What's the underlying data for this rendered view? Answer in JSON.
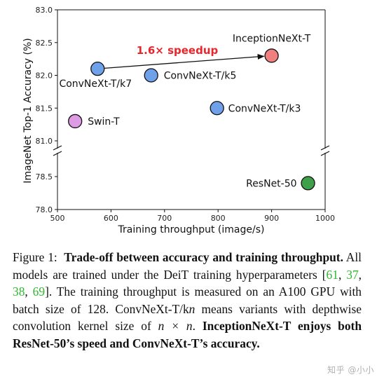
{
  "chart_data": {
    "type": "scatter",
    "xlabel": "Training throughput (image/s)",
    "ylabel": "ImageNet Top-1 Accuracy (%)",
    "xlim": [
      500,
      1000
    ],
    "xticks": [
      "500",
      "600",
      "700",
      "800",
      "900",
      "1000"
    ],
    "ylim_upper": [
      81.0,
      83.0
    ],
    "yticks_upper": [
      "81.0",
      "81.5",
      "82.0",
      "82.5",
      "83.0"
    ],
    "ylim_lower": [
      78.0,
      78.5
    ],
    "yticks_lower": [
      "78.0",
      "78.5"
    ],
    "broken_y_axis": true,
    "grid": false,
    "points": [
      {
        "name": "InceptionNeXt-T",
        "x": 900,
        "y": 82.3,
        "color": "#f08080"
      },
      {
        "name": "ConvNeXt-T/k7",
        "x": 575,
        "y": 82.1,
        "color": "#6fa0ea"
      },
      {
        "name": "ConvNeXt-T/k5",
        "x": 675,
        "y": 82.0,
        "color": "#6fa0ea"
      },
      {
        "name": "ConvNeXt-T/k3",
        "x": 798,
        "y": 81.5,
        "color": "#6fa0ea"
      },
      {
        "name": "Swin-T",
        "x": 533,
        "y": 81.3,
        "color": "#dd9be3"
      },
      {
        "name": "ResNet-50",
        "x": 968,
        "y": 78.4,
        "color": "#3fa04a"
      }
    ],
    "annotation": {
      "text": "1.6× speedup",
      "from": "ConvNeXt-T/k7",
      "to": "InceptionNeXt-T",
      "color": "#e8262c"
    }
  },
  "caption": {
    "figure_label": "Figure 1:",
    "bold_title": "Trade-off between accuracy and training throughput.",
    "text_1": "All models are trained under the DeiT training hyperparameters [",
    "refs": [
      "61",
      "37",
      "38",
      "69"
    ],
    "text_2": "]. The training throughput is measured on an A100 GPU with batch size of 128. ConvNeXt-T/k",
    "italic_n": "n",
    "text_3": " means variants with depthwise convolution kernel size of ",
    "math": "n × n",
    "text_4": ". ",
    "bold_end": "InceptionNeXt-T enjoys both ResNet-50’s speed and ConvNeXt-T’s accuracy."
  },
  "watermark": "知乎 @小小"
}
